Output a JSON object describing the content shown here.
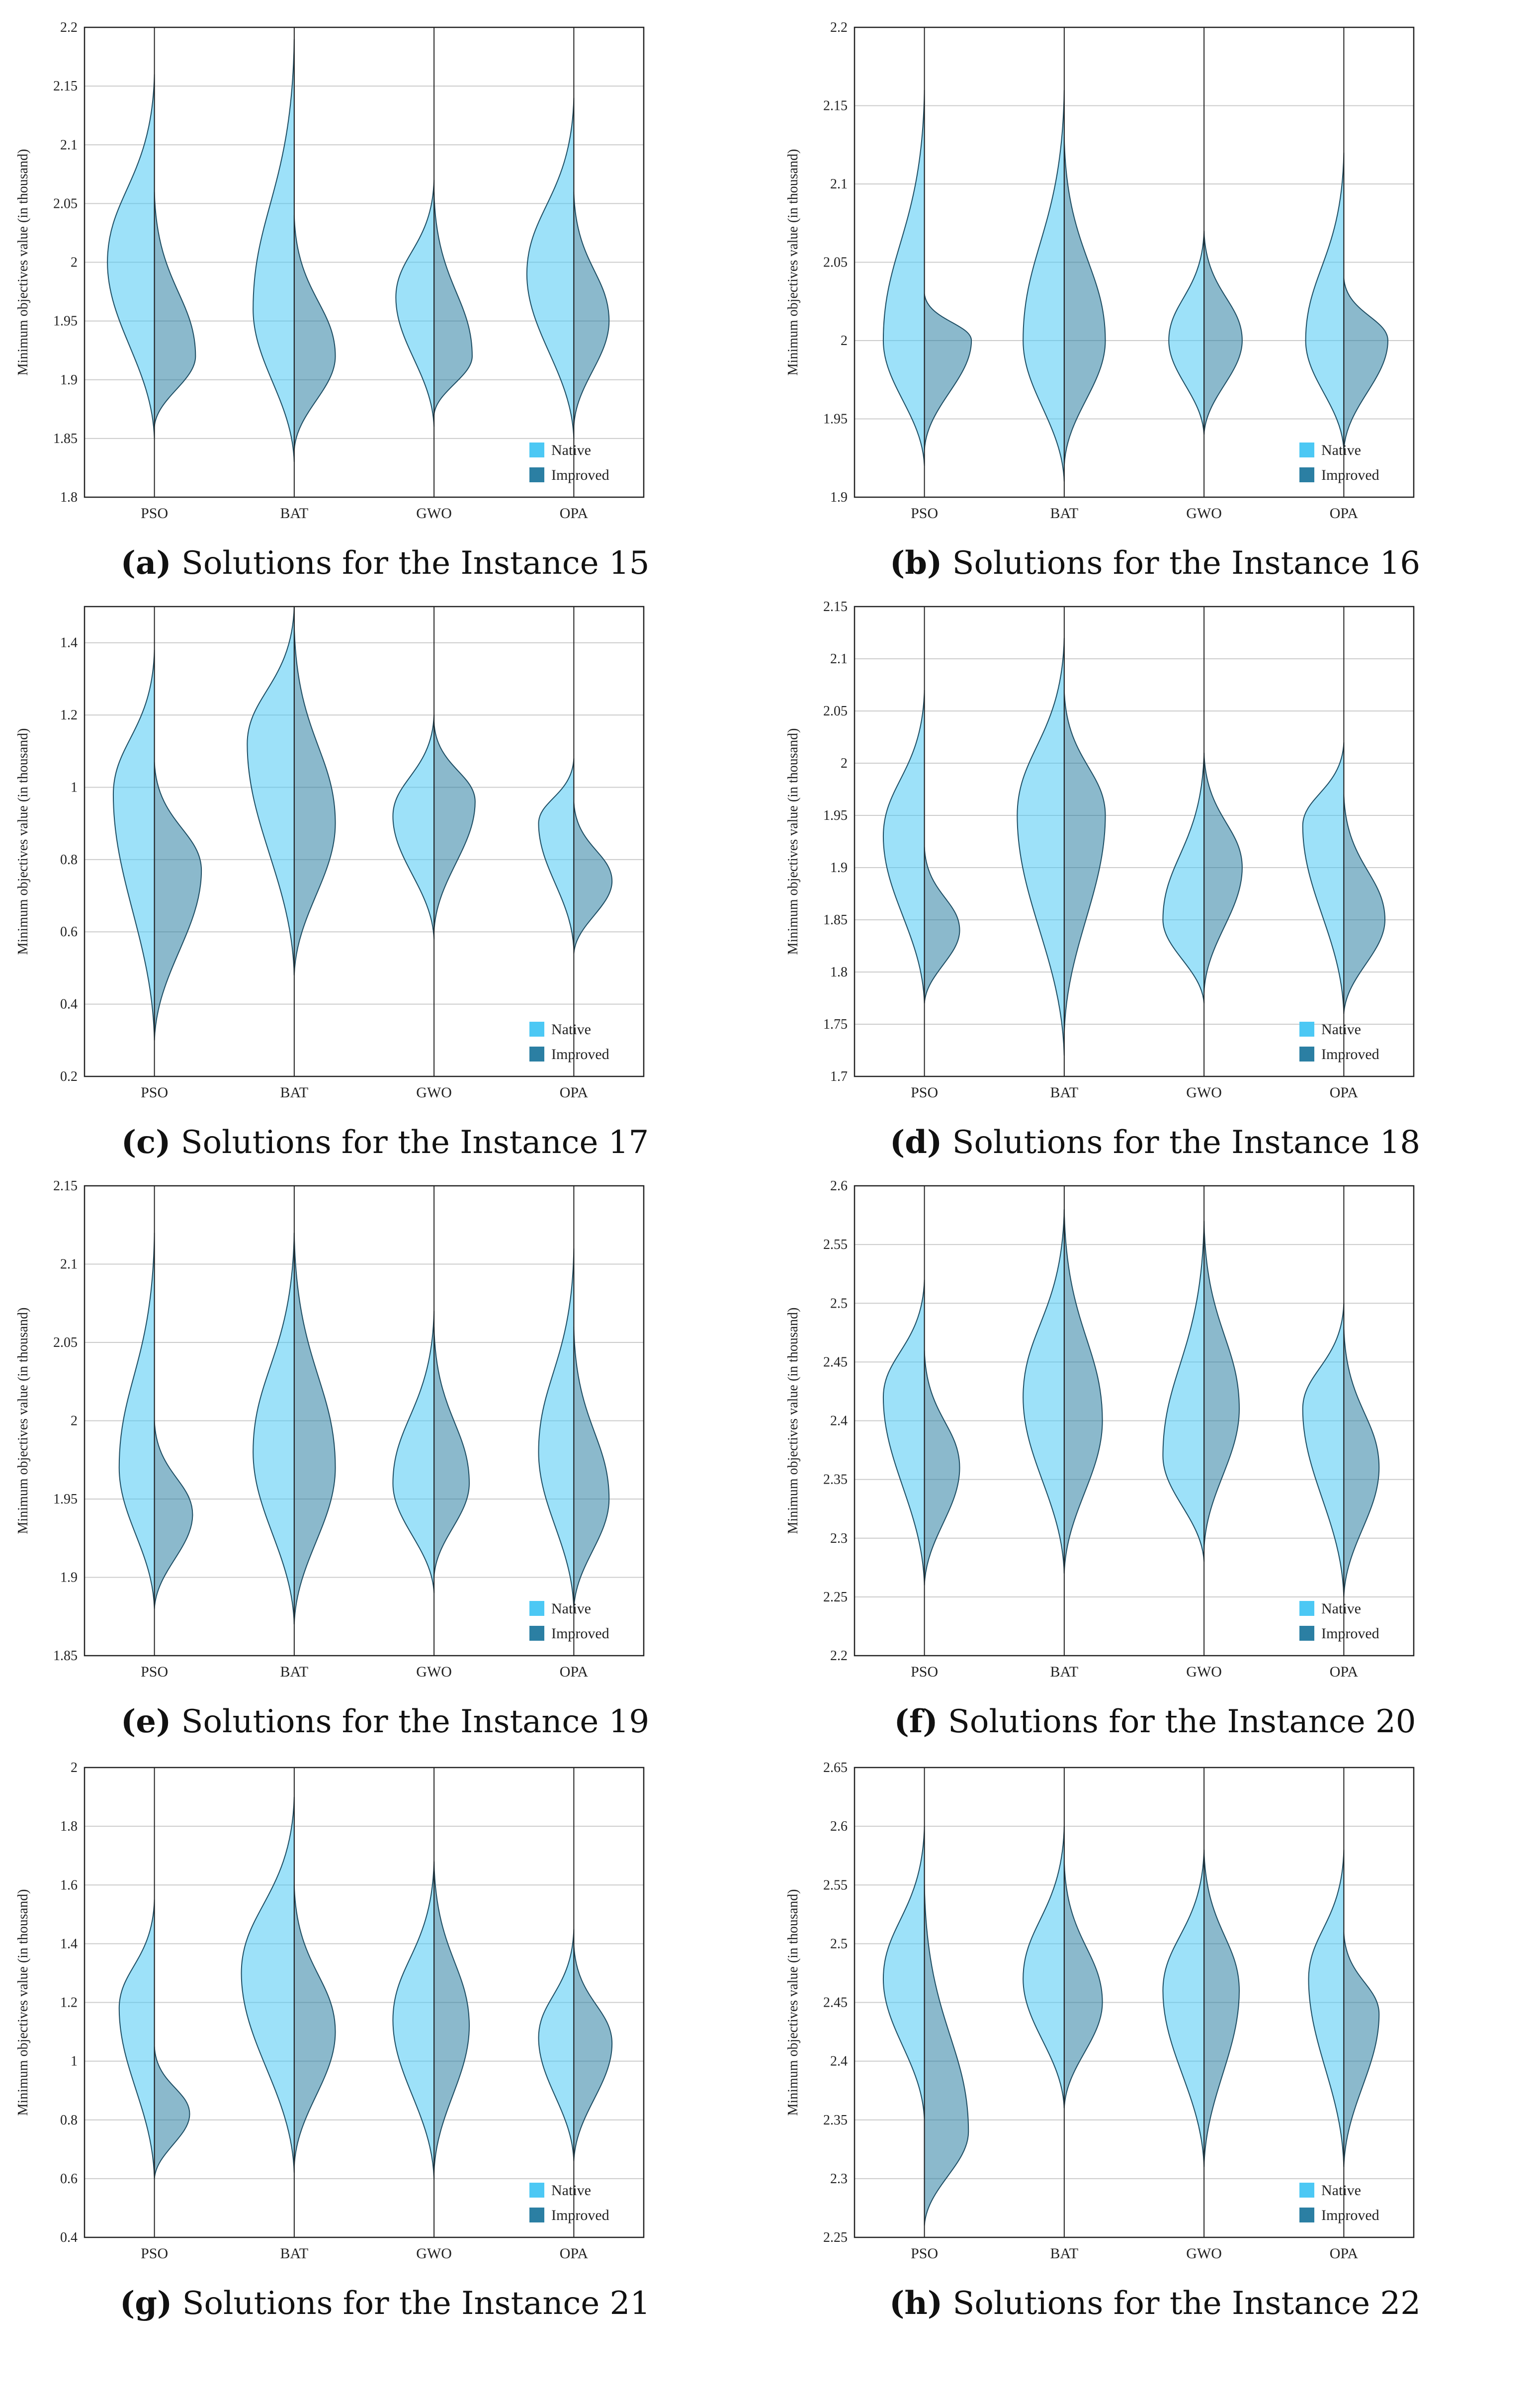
{
  "legend": {
    "native": "Native",
    "improved": "Improved"
  },
  "colors": {
    "native": "#4cc8f4",
    "improved": "#2b7fa3",
    "outline": "#1d4d63",
    "grid": "#cccccc"
  },
  "chart_data": [
    {
      "id": "a",
      "caption_label": "(a)",
      "caption_text": "Solutions for the Instance 15",
      "type": "violin",
      "ylabel": "Minimum objectives value (in thousand)",
      "ylim": [
        1.8,
        2.2
      ],
      "yticks": [
        "1.8",
        "1.85",
        "1.9",
        "1.95",
        "2",
        "2.05",
        "2.1",
        "2.15",
        "2.2"
      ],
      "categories": [
        "PSO",
        "BAT",
        "GWO",
        "OPA"
      ],
      "series": [
        {
          "name": "Native",
          "min": [
            1.85,
            1.83,
            1.86,
            1.85
          ],
          "max": [
            2.16,
            2.19,
            2.07,
            2.14
          ],
          "median": [
            2.0,
            1.96,
            1.97,
            1.99
          ],
          "width": [
            0.8,
            0.7,
            0.65,
            0.8
          ]
        },
        {
          "name": "Improved",
          "min": [
            1.86,
            1.84,
            1.87,
            1.86
          ],
          "max": [
            2.06,
            2.04,
            2.06,
            2.06
          ],
          "median": [
            1.92,
            1.92,
            1.92,
            1.95
          ],
          "width": [
            0.7,
            0.7,
            0.65,
            0.6
          ]
        }
      ]
    },
    {
      "id": "b",
      "caption_label": "(b)",
      "caption_text": "Solutions for the Instance 16",
      "type": "violin",
      "ylabel": "Minimum objectives value (in thousand)",
      "ylim": [
        1.9,
        2.2
      ],
      "yticks": [
        "1.9",
        "1.95",
        "2",
        "2.05",
        "2.1",
        "2.15",
        "2.2"
      ],
      "categories": [
        "PSO",
        "BAT",
        "GWO",
        "OPA"
      ],
      "series": [
        {
          "name": "Native",
          "min": [
            1.92,
            1.91,
            1.94,
            1.93
          ],
          "max": [
            2.16,
            2.16,
            2.07,
            2.12
          ],
          "median": [
            2.0,
            2.0,
            2.0,
            2.0
          ],
          "width": [
            0.7,
            0.7,
            0.6,
            0.65
          ]
        },
        {
          "name": "Improved",
          "min": [
            1.93,
            1.92,
            1.94,
            1.93
          ],
          "max": [
            2.03,
            2.13,
            2.07,
            2.04
          ],
          "median": [
            2.0,
            2.0,
            2.0,
            2.0
          ],
          "width": [
            0.8,
            0.7,
            0.65,
            0.75
          ]
        }
      ]
    },
    {
      "id": "c",
      "caption_label": "(c)",
      "caption_text": "Solutions for the Instance 17",
      "type": "violin",
      "ylabel": "Minimum objectives value (in thousand)",
      "ylim": [
        0.2,
        1.5
      ],
      "yticks": [
        "0.2",
        "0.4",
        "0.6",
        "0.8",
        "1",
        "1.2",
        "1.4"
      ],
      "categories": [
        "PSO",
        "BAT",
        "GWO",
        "OPA"
      ],
      "series": [
        {
          "name": "Native",
          "min": [
            0.3,
            0.48,
            0.58,
            0.55
          ],
          "max": [
            1.38,
            1.5,
            1.2,
            1.08
          ],
          "median": [
            0.98,
            1.12,
            0.92,
            0.9
          ],
          "width": [
            0.7,
            0.8,
            0.7,
            0.6
          ]
        },
        {
          "name": "Improved",
          "min": [
            0.3,
            0.48,
            0.6,
            0.54
          ],
          "max": [
            1.07,
            1.45,
            1.18,
            0.96
          ],
          "median": [
            0.77,
            0.9,
            0.96,
            0.74
          ],
          "width": [
            0.8,
            0.7,
            0.7,
            0.65
          ]
        }
      ]
    },
    {
      "id": "d",
      "caption_label": "(d)",
      "caption_text": "Solutions for the Instance 18",
      "type": "violin",
      "ylabel": "Minimum objectives value (in thousand)",
      "ylim": [
        1.7,
        2.15
      ],
      "yticks": [
        "1.7",
        "1.75",
        "1.8",
        "1.85",
        "1.9",
        "1.95",
        "2",
        "2.05",
        "2.1",
        "2.15"
      ],
      "categories": [
        "PSO",
        "BAT",
        "GWO",
        "OPA"
      ],
      "series": [
        {
          "name": "Native",
          "min": [
            1.77,
            1.72,
            1.77,
            1.76
          ],
          "max": [
            2.07,
            2.12,
            2.01,
            2.02
          ],
          "median": [
            1.93,
            1.95,
            1.85,
            1.94
          ],
          "width": [
            0.7,
            0.8,
            0.7,
            0.7
          ]
        },
        {
          "name": "Improved",
          "min": [
            1.77,
            1.74,
            1.78,
            1.76
          ],
          "max": [
            1.92,
            2.07,
            2.01,
            1.97
          ],
          "median": [
            1.84,
            1.95,
            1.9,
            1.85
          ],
          "width": [
            0.6,
            0.7,
            0.65,
            0.7
          ]
        }
      ]
    },
    {
      "id": "e",
      "caption_label": "(e)",
      "caption_text": "Solutions for the Instance 19",
      "type": "violin",
      "ylabel": "Minimum objectives value (in thousand)",
      "ylim": [
        1.85,
        2.15
      ],
      "yticks": [
        "1.85",
        "1.9",
        "1.95",
        "2",
        "2.05",
        "2.1",
        "2.15"
      ],
      "categories": [
        "PSO",
        "BAT",
        "GWO",
        "OPA"
      ],
      "series": [
        {
          "name": "Native",
          "min": [
            1.88,
            1.87,
            1.89,
            1.88
          ],
          "max": [
            2.12,
            2.12,
            2.07,
            2.11
          ],
          "median": [
            1.97,
            1.98,
            1.96,
            1.98
          ],
          "width": [
            0.6,
            0.7,
            0.7,
            0.6
          ]
        },
        {
          "name": "Improved",
          "min": [
            1.88,
            1.87,
            1.9,
            1.88
          ],
          "max": [
            2.0,
            2.12,
            2.06,
            2.06
          ],
          "median": [
            1.94,
            1.97,
            1.96,
            1.95
          ],
          "width": [
            0.65,
            0.7,
            0.6,
            0.6
          ]
        }
      ]
    },
    {
      "id": "f",
      "caption_label": "(f)",
      "caption_text": "Solutions for the Instance 20",
      "type": "violin",
      "ylabel": "Minimum objectives value (in thousand)",
      "ylim": [
        2.2,
        2.6
      ],
      "yticks": [
        "2.2",
        "2.25",
        "2.3",
        "2.35",
        "2.4",
        "2.45",
        "2.5",
        "2.55",
        "2.6"
      ],
      "categories": [
        "PSO",
        "BAT",
        "GWO",
        "OPA"
      ],
      "series": [
        {
          "name": "Native",
          "min": [
            2.26,
            2.27,
            2.28,
            2.25
          ],
          "max": [
            2.52,
            2.58,
            2.57,
            2.5
          ],
          "median": [
            2.42,
            2.42,
            2.37,
            2.41
          ],
          "width": [
            0.7,
            0.7,
            0.7,
            0.7
          ]
        },
        {
          "name": "Improved",
          "min": [
            2.26,
            2.27,
            2.29,
            2.25
          ],
          "max": [
            2.46,
            2.58,
            2.57,
            2.48
          ],
          "median": [
            2.36,
            2.4,
            2.41,
            2.36
          ],
          "width": [
            0.6,
            0.65,
            0.6,
            0.6
          ]
        }
      ]
    },
    {
      "id": "g",
      "caption_label": "(g)",
      "caption_text": "Solutions for the Instance 21",
      "type": "violin",
      "ylabel": "Minimum objectives value (in thousand)",
      "ylim": [
        0.4,
        2.0
      ],
      "yticks": [
        "0.4",
        "0.6",
        "0.8",
        "1",
        "1.2",
        "1.4",
        "1.6",
        "1.8",
        "2"
      ],
      "categories": [
        "PSO",
        "BAT",
        "GWO",
        "OPA"
      ],
      "series": [
        {
          "name": "Native",
          "min": [
            0.6,
            0.62,
            0.6,
            0.66
          ],
          "max": [
            1.55,
            1.9,
            1.68,
            1.45
          ],
          "median": [
            1.18,
            1.3,
            1.14,
            1.08
          ],
          "width": [
            0.6,
            0.9,
            0.7,
            0.6
          ]
        },
        {
          "name": "Improved",
          "min": [
            0.6,
            0.64,
            0.62,
            0.66
          ],
          "max": [
            1.05,
            1.6,
            1.68,
            1.4
          ],
          "median": [
            0.82,
            1.1,
            1.12,
            1.06
          ],
          "width": [
            0.6,
            0.7,
            0.6,
            0.65
          ]
        }
      ]
    },
    {
      "id": "h",
      "caption_label": "(h)",
      "caption_text": "Solutions for the Instance 22",
      "type": "violin",
      "ylabel": "Minimum objectives value (in thousand)",
      "ylim": [
        2.25,
        2.65
      ],
      "yticks": [
        "2.25",
        "2.3",
        "2.35",
        "2.4",
        "2.45",
        "2.5",
        "2.55",
        "2.6",
        "2.65"
      ],
      "categories": [
        "PSO",
        "BAT",
        "GWO",
        "OPA"
      ],
      "series": [
        {
          "name": "Native",
          "min": [
            2.35,
            2.36,
            2.31,
            2.31
          ],
          "max": [
            2.6,
            2.6,
            2.58,
            2.58
          ],
          "median": [
            2.47,
            2.47,
            2.46,
            2.47
          ],
          "width": [
            0.7,
            0.7,
            0.7,
            0.6
          ]
        },
        {
          "name": "Improved",
          "min": [
            2.26,
            2.36,
            2.31,
            2.31
          ],
          "max": [
            2.55,
            2.57,
            2.58,
            2.51
          ],
          "median": [
            2.34,
            2.45,
            2.46,
            2.44
          ],
          "width": [
            0.75,
            0.65,
            0.6,
            0.6
          ]
        }
      ]
    }
  ]
}
